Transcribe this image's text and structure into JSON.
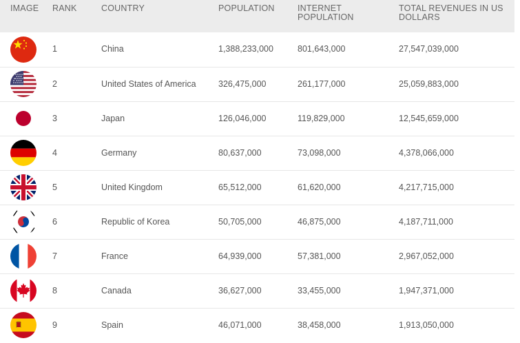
{
  "headers": {
    "image": "IMAGE",
    "rank": "RANK",
    "country": "COUNTRY",
    "population": "POPULATION",
    "internet_population": "INTERNET POPULATION",
    "total_revenues": "TOTAL REVENUES IN US DOLLARS"
  },
  "rows": [
    {
      "rank": "1",
      "country": "China",
      "population": "1,388,233,000",
      "internet_population": "801,643,000",
      "total_revenues": "27,547,039,000",
      "flag": "china-flag-icon"
    },
    {
      "rank": "2",
      "country": "United States of America",
      "population": "326,475,000",
      "internet_population": "261,177,000",
      "total_revenues": "25,059,883,000",
      "flag": "usa-flag-icon"
    },
    {
      "rank": "3",
      "country": "Japan",
      "population": "126,046,000",
      "internet_population": "119,829,000",
      "total_revenues": "12,545,659,000",
      "flag": "japan-flag-icon"
    },
    {
      "rank": "4",
      "country": "Germany",
      "population": "80,637,000",
      "internet_population": "73,098,000",
      "total_revenues": "4,378,066,000",
      "flag": "germany-flag-icon"
    },
    {
      "rank": "5",
      "country": "United Kingdom",
      "population": "65,512,000",
      "internet_population": "61,620,000",
      "total_revenues": "4,217,715,000",
      "flag": "uk-flag-icon"
    },
    {
      "rank": "6",
      "country": "Republic of Korea",
      "population": "50,705,000",
      "internet_population": "46,875,000",
      "total_revenues": "4,187,711,000",
      "flag": "korea-flag-icon"
    },
    {
      "rank": "7",
      "country": "France",
      "population": "64,939,000",
      "internet_population": "57,381,000",
      "total_revenues": "2,967,052,000",
      "flag": "france-flag-icon"
    },
    {
      "rank": "8",
      "country": "Canada",
      "population": "36,627,000",
      "internet_population": "33,455,000",
      "total_revenues": "1,947,371,000",
      "flag": "canada-flag-icon"
    },
    {
      "rank": "9",
      "country": "Spain",
      "population": "46,071,000",
      "internet_population": "38,458,000",
      "total_revenues": "1,913,050,000",
      "flag": "spain-flag-icon"
    }
  ]
}
